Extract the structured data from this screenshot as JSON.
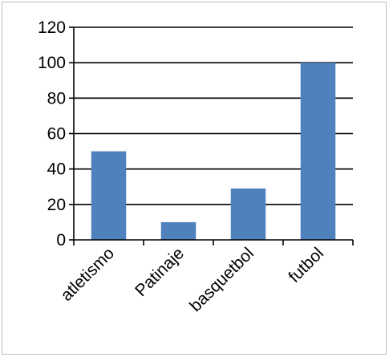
{
  "chart_data": {
    "type": "bar",
    "categories": [
      "atletismo",
      "Patinaje",
      "basquetbol",
      "futbol"
    ],
    "values": [
      50,
      10,
      29,
      100
    ],
    "title": "",
    "xlabel": "",
    "ylabel": "",
    "ylim": [
      0,
      120
    ],
    "yticks": [
      0,
      20,
      40,
      60,
      80,
      100,
      120
    ],
    "grid": true,
    "legend": "none",
    "bar_color": "#4f81bd"
  }
}
